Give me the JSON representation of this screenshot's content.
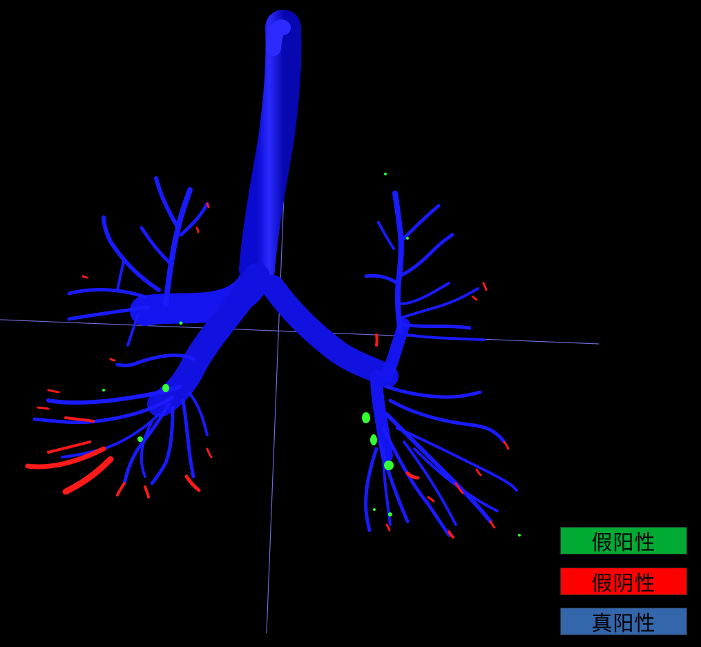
{
  "legend": {
    "items": [
      {
        "label": "假阳性",
        "color": "#00aa33"
      },
      {
        "label": "假阴性",
        "color": "#ff0000"
      },
      {
        "label": "真阳性",
        "color": "#3366aa"
      }
    ]
  },
  "colors": {
    "background": "#000000",
    "airway": "#1a1aff",
    "false_negative": "#ff1a1a",
    "false_positive": "#33ff33",
    "crosshair": "#6b6bd6"
  }
}
